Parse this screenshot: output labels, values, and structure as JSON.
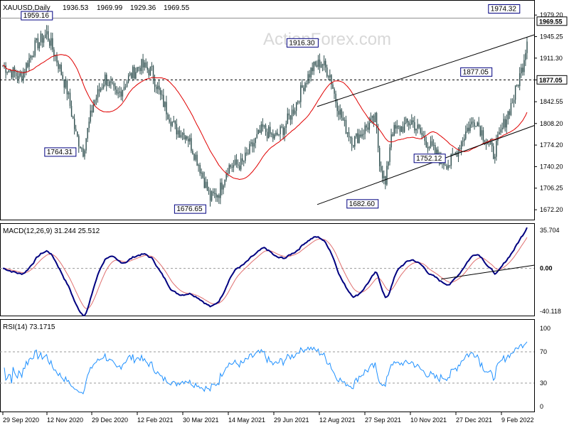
{
  "chart_data": [
    {
      "type": "candlestick",
      "symbol": "XAUUSD",
      "timeframe": "Daily",
      "header": "XAUUSD,Daily",
      "ohlc": [
        "1936.53",
        "1969.99",
        "1929.36",
        "1969.55"
      ],
      "watermark": "ActionForex.com",
      "y_ticks": [
        1979.2,
        1945.25,
        1911.3,
        1876.95,
        1842.55,
        1808.2,
        1774.2,
        1740.2,
        1706.25,
        1672.2
      ],
      "y_tick_labels": [
        "1979.20",
        "1945.25",
        "1911.30",
        "1876.95",
        "1842.55",
        "1808.20",
        "1774.20",
        "1740.20",
        "1706.25",
        "1672.20"
      ],
      "ylim": [
        1660,
        1985
      ],
      "x_tick_labels": [
        "29 Sep 2020",
        "12 Nov 2020",
        "29 Dec 2020",
        "12 Feb 2021",
        "30 Mar 2021",
        "14 May 2021",
        "29 Jun 2021",
        "12 Aug 2021",
        "27 Sep 2021",
        "10 Nov 2021",
        "27 Dec 2021",
        "9 Feb 2022"
      ],
      "current_price": "1969.55",
      "level_line": {
        "value": 1877.05,
        "label": "1877.05"
      },
      "annotations": [
        {
          "label": "1959.16",
          "value": 1959.16
        },
        {
          "label": "1764.31",
          "value": 1764.31
        },
        {
          "label": "1676.65",
          "value": 1676.65
        },
        {
          "label": "1916.30",
          "value": 1916.3
        },
        {
          "label": "1682.60",
          "value": 1682.6
        },
        {
          "label": "1877.05",
          "value": 1877.05
        },
        {
          "label": "1752.12",
          "value": 1752.12
        },
        {
          "label": "1974.32",
          "value": 1974.32
        }
      ],
      "series": [
        {
          "kind": "candles",
          "color": "#2f4f4f"
        },
        {
          "kind": "moving_average",
          "color": "#e00000"
        },
        {
          "kind": "channel",
          "color": "#000000"
        }
      ]
    },
    {
      "type": "line",
      "title": "MACD(12,26,9) 31.244 25.512",
      "y_tick_labels": [
        "35.704",
        "0.00",
        "-40.118"
      ],
      "ylim": [
        -40.118,
        35.704
      ],
      "series": [
        {
          "name": "MACD",
          "color": "#000080"
        },
        {
          "name": "Signal",
          "color": "#e07070"
        }
      ]
    },
    {
      "type": "line",
      "title": "RSI(14) 73.1715",
      "y_tick_labels": [
        "100",
        "70",
        "30",
        "0"
      ],
      "ylim": [
        0,
        100
      ],
      "levels": [
        70,
        30
      ],
      "series": [
        {
          "name": "RSI",
          "color": "#1e90ff"
        }
      ]
    }
  ]
}
